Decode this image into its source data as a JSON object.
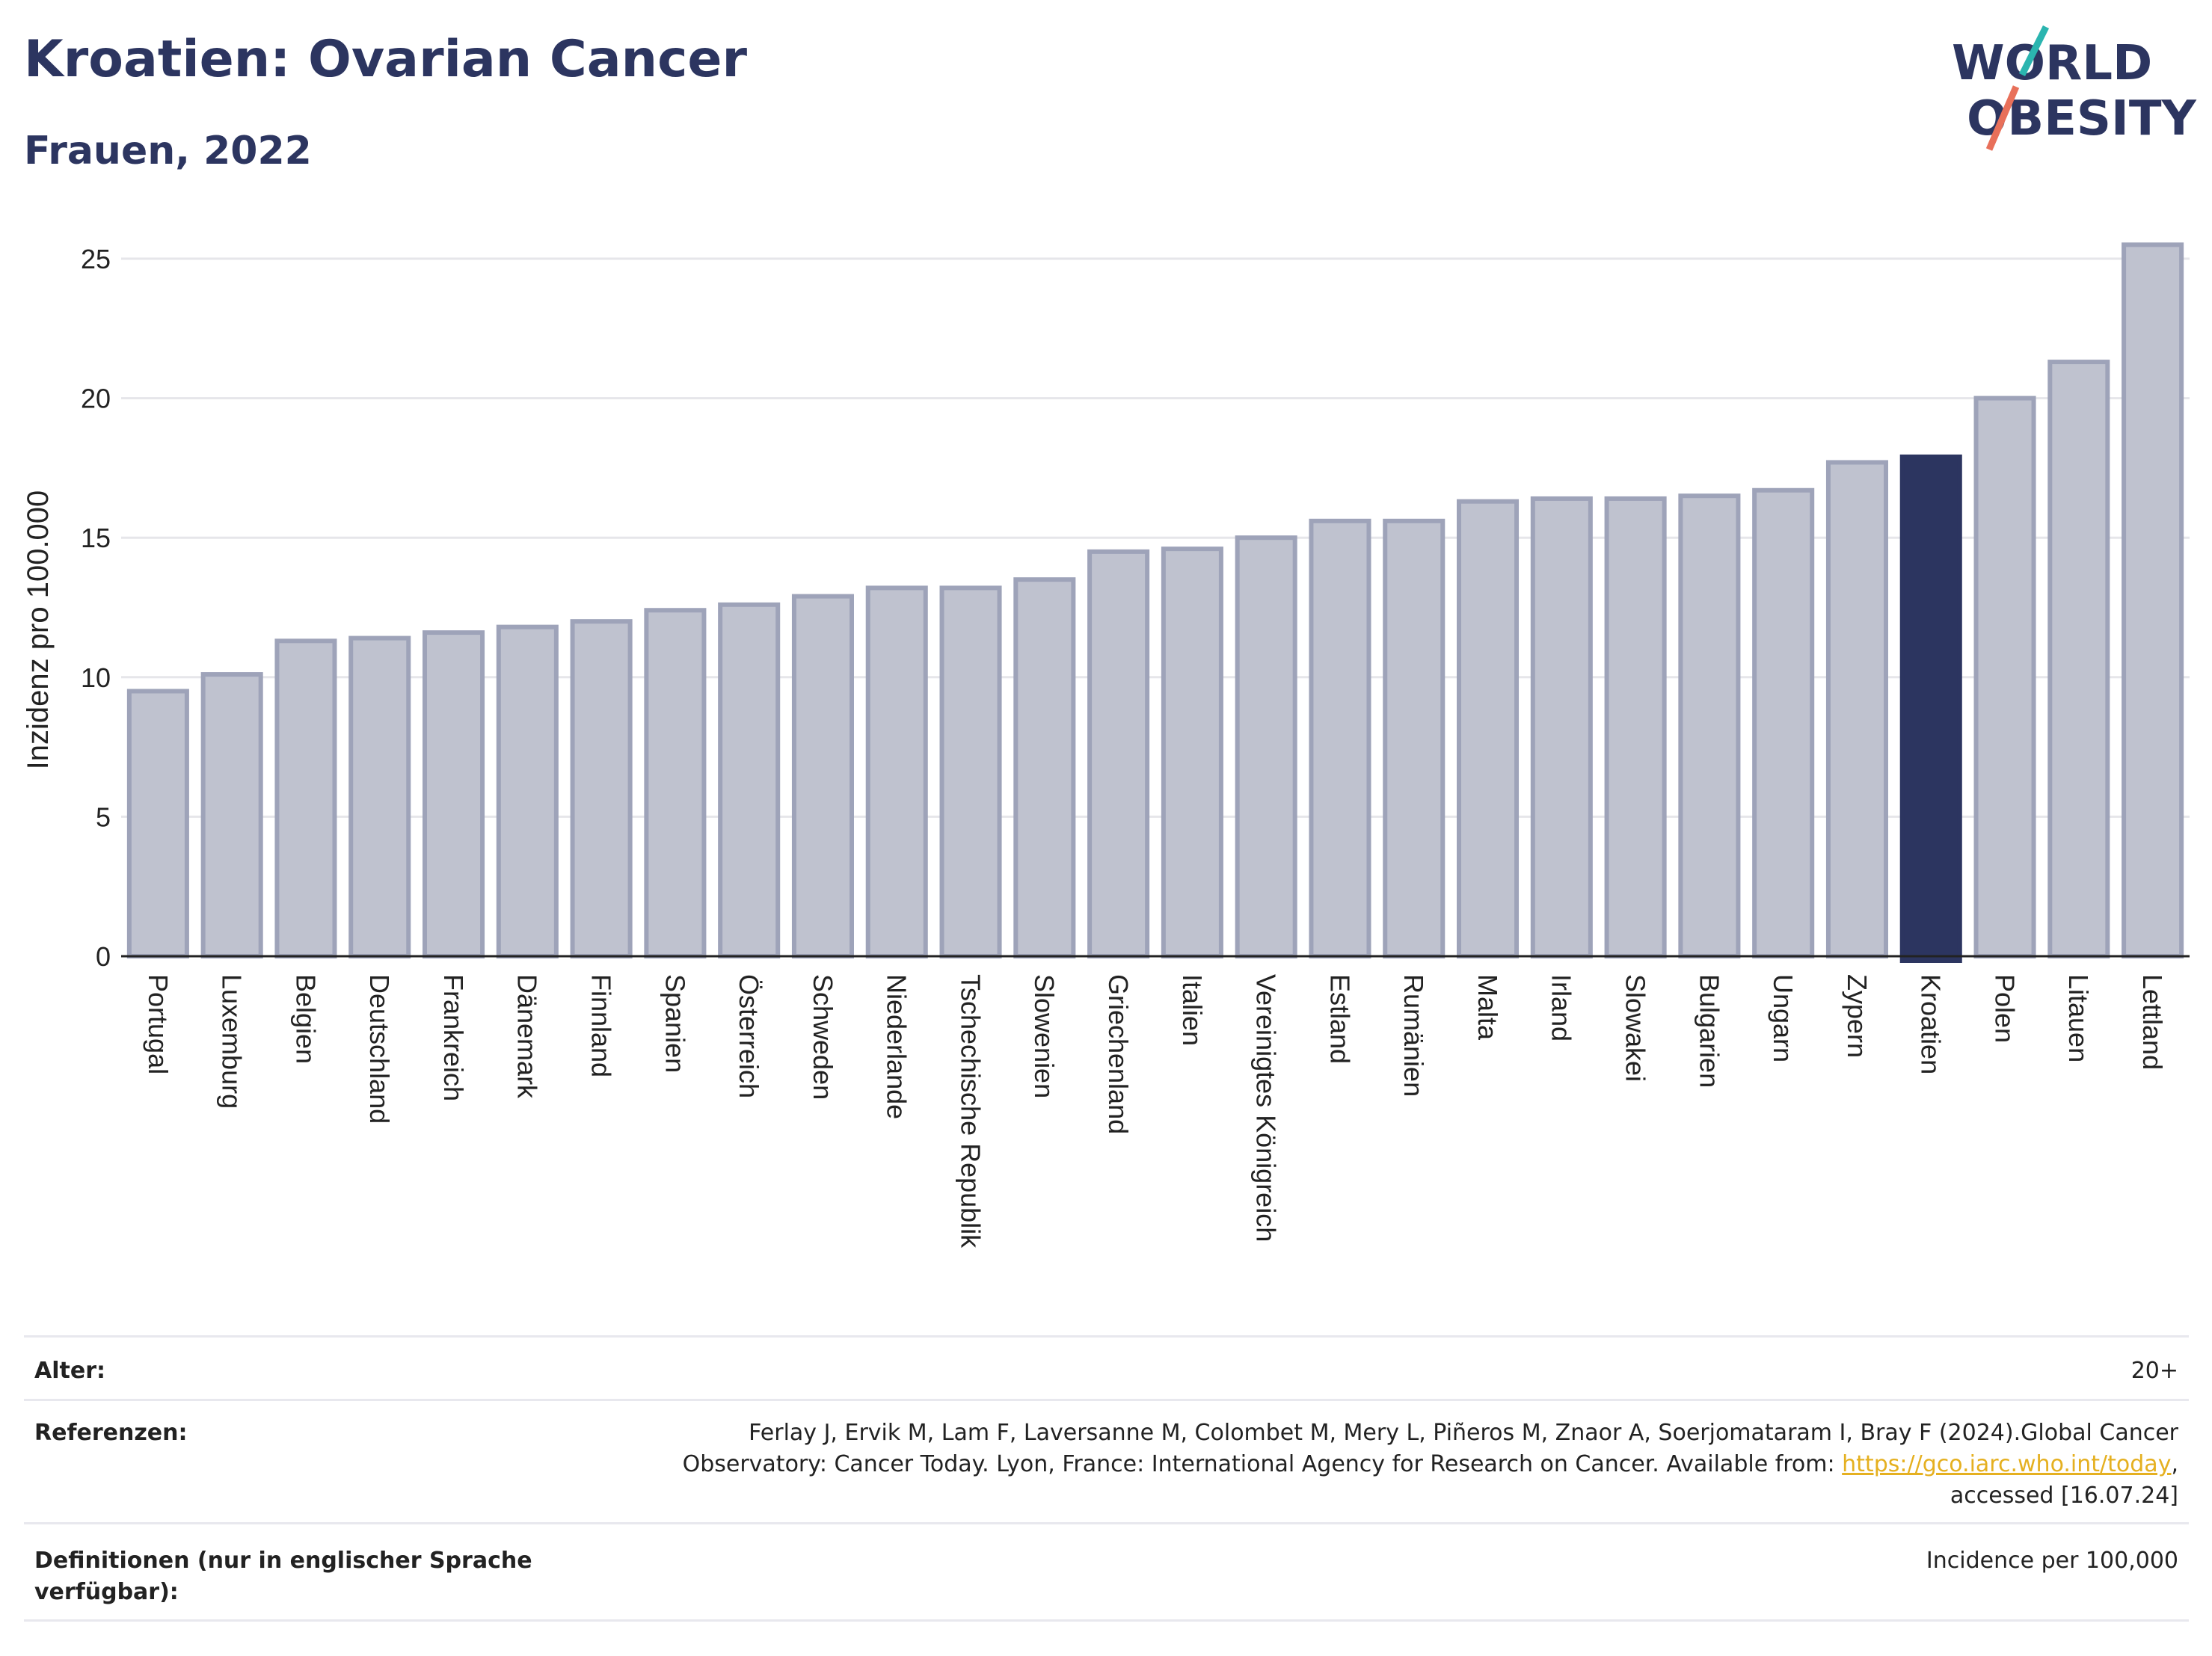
{
  "header": {
    "title": "Kroatien: Ovarian Cancer",
    "subtitle": "Frauen, 2022"
  },
  "logo": {
    "line1": "WORLD",
    "line2": "OBESITY",
    "accent_teal": "#2bb5b0",
    "accent_red": "#e8705a"
  },
  "colors": {
    "bar": "#bfc2cf",
    "bar_border": "#9ea3b9",
    "highlight": "#2c3560",
    "grid": "#e6e6ea",
    "text": "#2c3560"
  },
  "chart_data": {
    "type": "bar",
    "ylabel": "Inzidenz pro 100.000",
    "xlabel": "",
    "ylim": [
      0,
      26
    ],
    "yticks": [
      0,
      5,
      10,
      15,
      20,
      25
    ],
    "grid": true,
    "highlight": "Kroatien",
    "categories": [
      "Portugal",
      "Luxemburg",
      "Belgien",
      "Deutschland",
      "Frankreich",
      "Dänemark",
      "Finnland",
      "Spanien",
      "Österreich",
      "Schweden",
      "Niederlande",
      "Tschechische Republik",
      "Slowenien",
      "Griechenland",
      "Italien",
      "Vereinigtes Königreich",
      "Estland",
      "Rumänien",
      "Malta",
      "Irland",
      "Slowakei",
      "Bulgarien",
      "Ungarn",
      "Zypern",
      "Kroatien",
      "Polen",
      "Litauen",
      "Lettland"
    ],
    "values": [
      9.5,
      10.1,
      11.3,
      11.4,
      11.6,
      11.8,
      12.0,
      12.4,
      12.6,
      12.9,
      13.2,
      13.2,
      13.5,
      14.5,
      14.6,
      15.0,
      15.6,
      15.6,
      16.3,
      16.4,
      16.4,
      16.5,
      16.7,
      17.7,
      17.9,
      20.0,
      21.3,
      25.5
    ]
  },
  "meta": {
    "age_label": "Alter:",
    "age_value": "20+",
    "ref_label": "Referenzen:",
    "ref_line1": "Ferlay J, Ervik M, Lam F, Laversanne M, Colombet M, Mery L, Piñeros M, Znaor A, Soerjomataram I, Bray F (2024).Global Cancer",
    "ref_line2_pre": "Observatory: Cancer Today. Lyon, France: International Agency for Research on Cancer. Available from: ",
    "ref_link": "https://gco.iarc.who.int/today",
    "ref_line2_post": ",",
    "ref_line3": "accessed [16.07.24]",
    "def_label_1": "Definitionen (nur in englischer Sprache",
    "def_label_2": "verfügbar):",
    "def_value": "Incidence per 100,000"
  }
}
